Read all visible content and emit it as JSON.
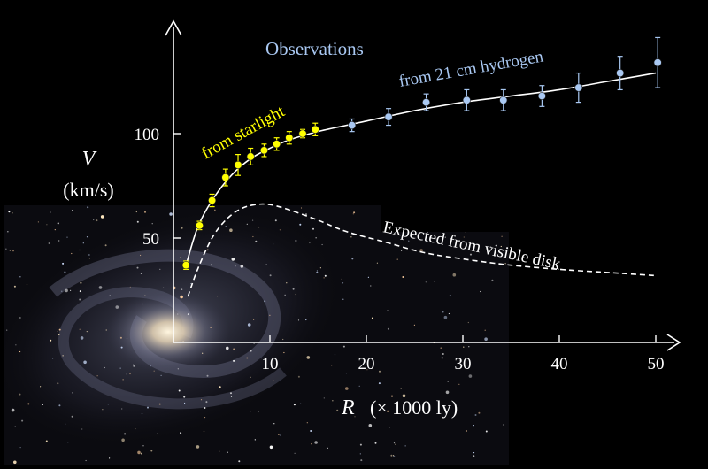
{
  "chart_data": {
    "type": "scatter",
    "title": "",
    "xlabel_var": "R",
    "xlabel_unit": "(× 1000 ly)",
    "ylabel_var": "V",
    "ylabel_unit": "(km/s)",
    "xlim": [
      0,
      52
    ],
    "ylim": [
      0,
      145
    ],
    "x_ticks": [
      10,
      20,
      30,
      40,
      50
    ],
    "y_ticks": [
      50,
      100
    ],
    "grid": false,
    "series": [
      {
        "name": "from  starlight",
        "color": "#ffff00",
        "points": [
          {
            "x": 1.3,
            "y": 37,
            "err": 2
          },
          {
            "x": 2.7,
            "y": 56,
            "err": 2
          },
          {
            "x": 4.0,
            "y": 68,
            "err": 3
          },
          {
            "x": 5.4,
            "y": 79,
            "err": 4
          },
          {
            "x": 6.7,
            "y": 85,
            "err": 5
          },
          {
            "x": 8.0,
            "y": 89,
            "err": 4
          },
          {
            "x": 9.4,
            "y": 92,
            "err": 3
          },
          {
            "x": 10.7,
            "y": 95,
            "err": 3
          },
          {
            "x": 12.0,
            "y": 98,
            "err": 3
          },
          {
            "x": 13.4,
            "y": 100,
            "err": 2
          },
          {
            "x": 14.7,
            "y": 102,
            "err": 3
          }
        ]
      },
      {
        "name": "from 21 cm hydrogen",
        "color": "#a9c8f2",
        "points": [
          {
            "x": 18.5,
            "y": 104,
            "err": 3
          },
          {
            "x": 22.3,
            "y": 108,
            "err": 4
          },
          {
            "x": 26.2,
            "y": 115,
            "err": 4
          },
          {
            "x": 30.4,
            "y": 116,
            "err": 5
          },
          {
            "x": 34.2,
            "y": 116,
            "err": 5
          },
          {
            "x": 38.2,
            "y": 118,
            "err": 5
          },
          {
            "x": 42.0,
            "y": 122,
            "err": 7
          },
          {
            "x": 46.3,
            "y": 129,
            "err": 8
          },
          {
            "x": 50.2,
            "y": 134,
            "err": 12
          }
        ]
      }
    ],
    "fit_curve": [
      [
        1.3,
        37
      ],
      [
        2.5,
        55
      ],
      [
        4,
        68
      ],
      [
        6,
        80
      ],
      [
        8,
        88
      ],
      [
        10,
        93
      ],
      [
        12,
        97
      ],
      [
        15,
        101
      ],
      [
        20,
        106
      ],
      [
        25,
        111
      ],
      [
        30,
        115
      ],
      [
        35,
        118
      ],
      [
        40,
        121
      ],
      [
        45,
        125
      ],
      [
        50,
        129
      ]
    ],
    "expected_curve": {
      "name": "Expected from visible disk",
      "points": [
        [
          1.5,
          22
        ],
        [
          2.5,
          35
        ],
        [
          4,
          50
        ],
        [
          5.5,
          59
        ],
        [
          7,
          64
        ],
        [
          8.5,
          66
        ],
        [
          10,
          66
        ],
        [
          12,
          63.5
        ],
        [
          15,
          58.5
        ],
        [
          18,
          53
        ],
        [
          22,
          48
        ],
        [
          26,
          43
        ],
        [
          30,
          40
        ],
        [
          35,
          37
        ],
        [
          40,
          35
        ],
        [
          45,
          33.5
        ],
        [
          50,
          32
        ]
      ]
    },
    "annotations": {
      "observations": "Observations",
      "starlight": "from  starlight",
      "hydrogen": "from 21 cm hydrogen",
      "expected": "Expected from visible disk"
    }
  },
  "colors": {
    "background": "#000000",
    "axis": "#ffffff",
    "observations_label": "#a9c8f2",
    "starlight": "#ffff00",
    "hydrogen": "#a9c8f2",
    "curve": "#ffffff"
  }
}
